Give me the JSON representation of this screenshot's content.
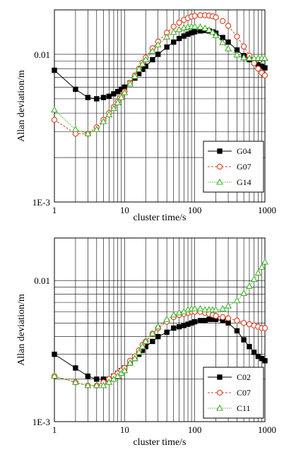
{
  "chart_data": [
    {
      "type": "line",
      "xlabel": "cluster time/s",
      "ylabel": "Allan deviation/m",
      "xscale": "log",
      "yscale": "log",
      "xlim": [
        1,
        1000
      ],
      "ylim": [
        0.001,
        0.02
      ],
      "x_ticks": [
        {
          "value": 1,
          "label": "1"
        },
        {
          "value": 10,
          "label": "10"
        },
        {
          "value": 100,
          "label": "100"
        },
        {
          "value": 1000,
          "label": "1000"
        }
      ],
      "y_ticks": [
        {
          "value": 0.001,
          "label": "1E-3"
        },
        {
          "value": 0.01,
          "label": "0.01"
        }
      ],
      "grid": true,
      "legend_position": "bottom-right",
      "series": [
        {
          "name": "G04",
          "color": "#000000",
          "marker": "square",
          "line": "solid",
          "x": [
            1,
            2,
            3,
            4,
            5,
            6,
            7,
            8,
            9,
            10,
            12,
            14,
            16,
            18,
            20,
            25,
            30,
            40,
            50,
            60,
            70,
            80,
            90,
            100,
            120,
            140,
            160,
            180,
            200,
            250,
            300,
            400,
            500,
            600,
            700,
            800,
            900,
            1000
          ],
          "y": [
            0.0078,
            0.0058,
            0.0051,
            0.005,
            0.0051,
            0.0052,
            0.0054,
            0.0056,
            0.0058,
            0.006,
            0.0064,
            0.0069,
            0.0074,
            0.0079,
            0.0083,
            0.0092,
            0.01,
            0.0112,
            0.0121,
            0.0128,
            0.0133,
            0.0137,
            0.014,
            0.0142,
            0.0144,
            0.0145,
            0.0144,
            0.0142,
            0.0139,
            0.013,
            0.0121,
            0.0107,
            0.0098,
            0.0092,
            0.0088,
            0.0085,
            0.0083,
            0.0081
          ]
        },
        {
          "name": "G07",
          "color": "#e03c1c",
          "marker": "circle",
          "line": "dashed",
          "x": [
            1,
            2,
            3,
            4,
            5,
            6,
            7,
            8,
            9,
            10,
            12,
            14,
            16,
            18,
            20,
            25,
            30,
            40,
            50,
            60,
            70,
            80,
            90,
            100,
            120,
            140,
            160,
            180,
            200,
            250,
            300,
            400,
            500,
            600,
            700,
            800,
            900,
            1000
          ],
          "y": [
            0.0036,
            0.0029,
            0.0029,
            0.0032,
            0.0036,
            0.004,
            0.0044,
            0.0048,
            0.0052,
            0.0056,
            0.0064,
            0.0072,
            0.008,
            0.0088,
            0.0095,
            0.011,
            0.0122,
            0.014,
            0.0154,
            0.0164,
            0.0171,
            0.0176,
            0.018,
            0.0182,
            0.0184,
            0.0184,
            0.0183,
            0.0181,
            0.0178,
            0.0168,
            0.0156,
            0.0132,
            0.0113,
            0.0098,
            0.0087,
            0.008,
            0.0075,
            0.0072
          ]
        },
        {
          "name": "G14",
          "color": "#44b02c",
          "marker": "triangle",
          "line": "dotted",
          "x": [
            1,
            2,
            3,
            4,
            5,
            6,
            7,
            8,
            9,
            10,
            12,
            14,
            16,
            18,
            20,
            25,
            30,
            40,
            50,
            60,
            70,
            80,
            90,
            100,
            120,
            140,
            160,
            180,
            200,
            250,
            300,
            400,
            500,
            600,
            700,
            800,
            900,
            1000
          ],
          "y": [
            0.0042,
            0.0031,
            0.0029,
            0.0031,
            0.0035,
            0.0039,
            0.0043,
            0.0047,
            0.0051,
            0.0055,
            0.0063,
            0.0071,
            0.0079,
            0.0086,
            0.0092,
            0.0105,
            0.0116,
            0.0131,
            0.0141,
            0.0147,
            0.0151,
            0.0153,
            0.0154,
            0.0154,
            0.0153,
            0.015,
            0.0146,
            0.0141,
            0.0134,
            0.012,
            0.0109,
            0.0099,
            0.0095,
            0.0094,
            0.0094,
            0.0094,
            0.0094,
            0.0094
          ]
        }
      ]
    },
    {
      "type": "line",
      "xlabel": "cluster time/s",
      "ylabel": "Allan deviation/m",
      "xscale": "log",
      "yscale": "log",
      "xlim": [
        1,
        1000
      ],
      "ylim": [
        0.001,
        0.02
      ],
      "x_ticks": [
        {
          "value": 1,
          "label": "1"
        },
        {
          "value": 10,
          "label": "10"
        },
        {
          "value": 100,
          "label": "100"
        },
        {
          "value": 1000,
          "label": "1000"
        }
      ],
      "y_ticks": [
        {
          "value": 0.001,
          "label": "1E-3"
        },
        {
          "value": 0.01,
          "label": "0.01"
        }
      ],
      "grid": true,
      "legend_position": "bottom-right",
      "series": [
        {
          "name": "C02",
          "color": "#000000",
          "marker": "square",
          "line": "solid",
          "x": [
            1,
            2,
            3,
            4,
            5,
            6,
            7,
            8,
            9,
            10,
            12,
            14,
            16,
            18,
            20,
            25,
            30,
            40,
            50,
            60,
            70,
            80,
            90,
            100,
            120,
            140,
            160,
            180,
            200,
            250,
            300,
            400,
            500,
            600,
            700,
            800,
            900,
            1000
          ],
          "y": [
            0.003,
            0.0024,
            0.0021,
            0.002,
            0.002,
            0.002,
            0.0021,
            0.0022,
            0.0023,
            0.0024,
            0.0026,
            0.0028,
            0.003,
            0.0032,
            0.0034,
            0.0037,
            0.004,
            0.0043,
            0.0046,
            0.0047,
            0.0048,
            0.0049,
            0.005,
            0.0051,
            0.0052,
            0.0052,
            0.0053,
            0.0053,
            0.0053,
            0.0052,
            0.005,
            0.0044,
            0.0038,
            0.0034,
            0.0031,
            0.0029,
            0.0028,
            0.0027
          ]
        },
        {
          "name": "C07",
          "color": "#e03c1c",
          "marker": "circle",
          "line": "dashed",
          "x": [
            1,
            2,
            3,
            4,
            5,
            6,
            7,
            8,
            9,
            10,
            12,
            14,
            16,
            18,
            20,
            25,
            30,
            40,
            50,
            60,
            70,
            80,
            90,
            100,
            120,
            140,
            160,
            180,
            200,
            250,
            300,
            400,
            500,
            600,
            700,
            800,
            900,
            1000
          ],
          "y": [
            0.0021,
            0.0019,
            0.0018,
            0.0018,
            0.0019,
            0.002,
            0.0021,
            0.0022,
            0.0023,
            0.0024,
            0.0027,
            0.0029,
            0.0032,
            0.0035,
            0.0037,
            0.0042,
            0.0046,
            0.0051,
            0.0055,
            0.0057,
            0.0058,
            0.0059,
            0.006,
            0.006,
            0.006,
            0.0059,
            0.0058,
            0.0057,
            0.0056,
            0.0055,
            0.0054,
            0.0052,
            0.005,
            0.0049,
            0.0048,
            0.0047,
            0.0046,
            0.0046
          ]
        },
        {
          "name": "C11",
          "color": "#44b02c",
          "marker": "triangle",
          "line": "dotted",
          "x": [
            1,
            2,
            3,
            4,
            5,
            6,
            7,
            8,
            9,
            10,
            12,
            14,
            16,
            18,
            20,
            25,
            30,
            40,
            50,
            60,
            70,
            80,
            90,
            100,
            120,
            140,
            160,
            180,
            200,
            250,
            300,
            400,
            500,
            600,
            700,
            800,
            900,
            1000
          ],
          "y": [
            0.0021,
            0.0019,
            0.0018,
            0.0018,
            0.0018,
            0.0019,
            0.002,
            0.0021,
            0.0022,
            0.0023,
            0.0026,
            0.0028,
            0.0031,
            0.0034,
            0.0037,
            0.0042,
            0.0047,
            0.0053,
            0.0057,
            0.0059,
            0.006,
            0.0062,
            0.0063,
            0.0063,
            0.0063,
            0.0062,
            0.0062,
            0.0062,
            0.0062,
            0.0063,
            0.0066,
            0.0072,
            0.0081,
            0.0091,
            0.0102,
            0.0113,
            0.0124,
            0.0135
          ]
        }
      ]
    }
  ]
}
